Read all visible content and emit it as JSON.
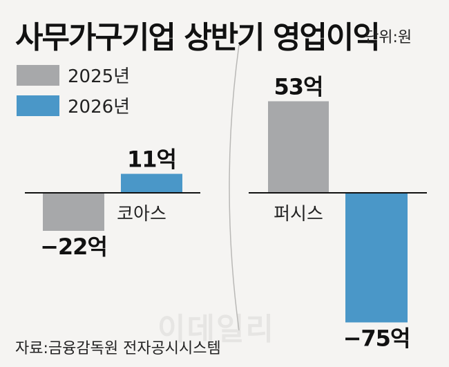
{
  "title": "사무가구기업 상반기 영업이익",
  "unit_label": "단위:원",
  "source": "자료:금융감독원 전자공시시스템",
  "watermark": "이데일리",
  "colors": {
    "series_2025": "#a7a8aa",
    "series_2026": "#4a97c8",
    "axis": "#111111",
    "background": "#f5f4f2"
  },
  "chart_data": [
    {
      "type": "bar",
      "categories": [
        "코아스"
      ],
      "series": [
        {
          "name": "2025년",
          "values": [
            -22
          ],
          "labels": [
            "−22억"
          ]
        },
        {
          "name": "2026년",
          "values": [
            11
          ],
          "labels": [
            "11억"
          ]
        }
      ],
      "legend": "top-left",
      "grid": false
    },
    {
      "type": "bar",
      "categories": [
        "퍼시스"
      ],
      "series": [
        {
          "name": "2025년",
          "values": [
            53
          ],
          "labels": [
            "53억"
          ]
        },
        {
          "name": "2026년",
          "values": [
            -75
          ],
          "labels": [
            "−75억"
          ]
        }
      ],
      "grid": false
    }
  ]
}
